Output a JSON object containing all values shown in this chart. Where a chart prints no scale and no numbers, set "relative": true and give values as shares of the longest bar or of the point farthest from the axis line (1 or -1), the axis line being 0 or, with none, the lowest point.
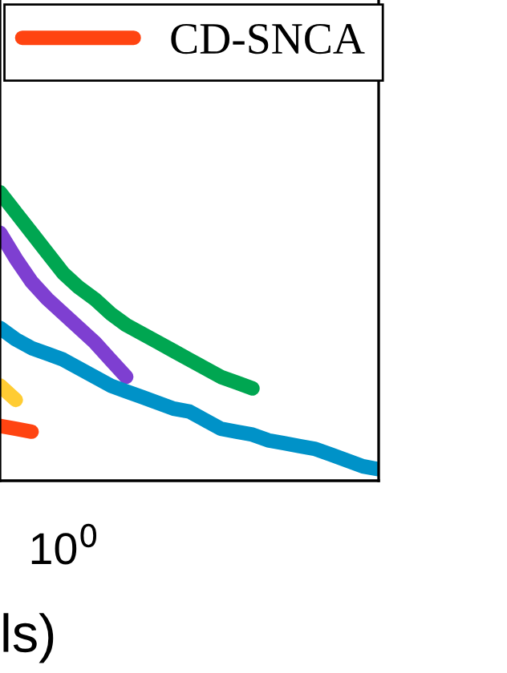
{
  "chart_data": {
    "type": "line",
    "relative": true,
    "xlabel": "ls)",
    "legend": "top left",
    "line_style": "solid",
    "marker": "none",
    "annotations": [
      "10$^{0}$"
    ],
    "categories": [
      null,
      null,
      null,
      null,
      null,
      null,
      null,
      null,
      null,
      null,
      null,
      null,
      null,
      null,
      null,
      null,
      null,
      null,
      null,
      null,
      null,
      null,
      null,
      null,
      null
    ],
    "series": [
      {
        "color": "#00a651",
        "values": [
          1.0,
          0.93,
          0.86,
          0.79,
          0.72,
          0.67,
          0.63,
          0.58,
          0.54,
          0.51,
          0.48,
          0.45,
          0.42,
          0.39,
          0.36,
          0.34,
          0.32,
          null,
          null,
          null,
          null,
          null,
          null,
          null,
          null
        ]
      },
      {
        "color": "#7e3fd1",
        "values": [
          0.86,
          0.77,
          0.69,
          0.63,
          0.58,
          0.53,
          0.48,
          0.42,
          0.36,
          null,
          null,
          null,
          null,
          null,
          null,
          null,
          null,
          null,
          null,
          null,
          null,
          null,
          null,
          null,
          null
        ]
      },
      {
        "color": "#0092c8",
        "values": [
          0.53,
          0.49,
          0.46,
          0.44,
          0.42,
          0.39,
          0.36,
          0.33,
          0.31,
          0.29,
          0.27,
          0.25,
          0.24,
          0.21,
          0.18,
          0.17,
          0.16,
          0.14,
          0.13,
          0.12,
          0.11,
          0.09,
          0.07,
          0.05,
          0.04
        ]
      },
      {
        "color": "#ffcc33",
        "values": [
          0.33,
          0.28,
          null,
          null,
          null,
          null,
          null,
          null,
          null,
          null,
          null,
          null,
          null,
          null,
          null,
          null,
          null,
          null,
          null,
          null,
          null,
          null,
          null,
          null,
          null
        ]
      },
      {
        "name": "CD-SNCA",
        "color": "#ff4411",
        "values": [
          0.19,
          0.18,
          0.17,
          null,
          null,
          null,
          null,
          null,
          null,
          null,
          null,
          null,
          null,
          null,
          null,
          null,
          null,
          null,
          null,
          null,
          null,
          null,
          null,
          null,
          null
        ]
      }
    ]
  }
}
